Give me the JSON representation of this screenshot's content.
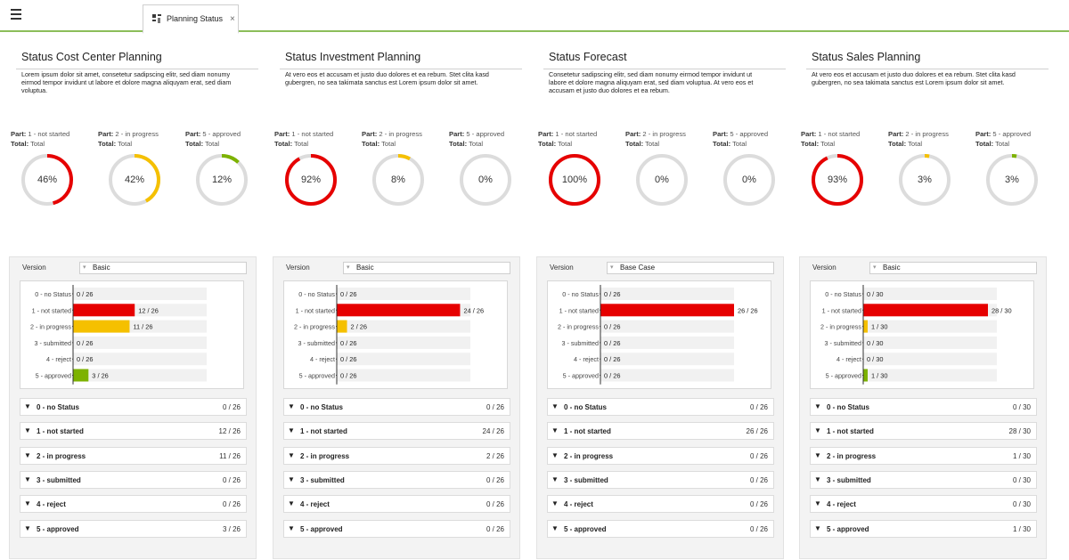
{
  "tab": {
    "label": "Planning Status",
    "close": "×"
  },
  "columns": [
    {
      "title": "Status Cost Center Planning",
      "description": "Lorem ipsum dolor sit amet, consetetur sadipscing elitr, sed diam nonumy eirmod tempor invidunt ut labore et dolore magna aliquyam erat, sed diam voluptua.",
      "parts": [
        {
          "part_key": "Part:",
          "part_val": " 1 - not started",
          "total_key": "Total:",
          "total_val": " Total",
          "percent": 46,
          "display": "46%",
          "color": "#e60000"
        },
        {
          "part_key": "Part:",
          "part_val": " 2 - in progress",
          "total_key": "Total:",
          "total_val": " Total",
          "percent": 42,
          "display": "42%",
          "color": "#f5c000"
        },
        {
          "part_key": "Part:",
          "part_val": " 5 - approved",
          "total_key": "Total:",
          "total_val": " Total",
          "percent": 12,
          "display": "12%",
          "color": "#7db200"
        }
      ],
      "version_label": "Version",
      "version_value": "Basic",
      "total": 26,
      "bars": [
        {
          "label": "0 - no Status",
          "value": 0,
          "text": "0 / 26"
        },
        {
          "label": "1 - not started",
          "value": 12,
          "text": "12 / 26"
        },
        {
          "label": "2 - in progress",
          "value": 11,
          "text": "11 / 26"
        },
        {
          "label": "3 - submitted",
          "value": 0,
          "text": "0 / 26"
        },
        {
          "label": "4 - reject",
          "value": 0,
          "text": "0 / 26"
        },
        {
          "label": "5 - approved",
          "value": 3,
          "text": "3 / 26"
        }
      ],
      "groups": [
        {
          "label": "0 - no Status",
          "count": "0 / 26"
        },
        {
          "label": "1 - not started",
          "count": "12 / 26"
        },
        {
          "label": "2 - in progress",
          "count": "11 / 26"
        },
        {
          "label": "3 - submitted",
          "count": "0 / 26"
        },
        {
          "label": "4 - reject",
          "count": "0 / 26"
        },
        {
          "label": "5 - approved",
          "count": "3 / 26"
        }
      ]
    },
    {
      "title": "Status Investment Planning",
      "description": "At vero eos et accusam et justo duo dolores et ea rebum. Stet clita kasd gubergren, no sea takimata sanctus est Lorem ipsum dolor sit amet.",
      "parts": [
        {
          "part_key": "Part:",
          "part_val": " 1 - not started",
          "total_key": "Total:",
          "total_val": " Total",
          "percent": 92,
          "display": "92%",
          "color": "#e60000"
        },
        {
          "part_key": "Part:",
          "part_val": " 2 - in progress",
          "total_key": "Total:",
          "total_val": " Total",
          "percent": 8,
          "display": "8%",
          "color": "#f5c000"
        },
        {
          "part_key": "Part:",
          "part_val": " 5 - approved",
          "total_key": "Total:",
          "total_val": " Total",
          "percent": 0,
          "display": "0%",
          "color": "#7db200"
        }
      ],
      "version_label": "Version",
      "version_value": "Basic",
      "total": 26,
      "bars": [
        {
          "label": "0 - no Status",
          "value": 0,
          "text": "0 / 26"
        },
        {
          "label": "1 - not started",
          "value": 24,
          "text": "24 / 26"
        },
        {
          "label": "2 - in progress",
          "value": 2,
          "text": "2 / 26"
        },
        {
          "label": "3 - submitted",
          "value": 0,
          "text": "0 / 26"
        },
        {
          "label": "4 - reject",
          "value": 0,
          "text": "0 / 26"
        },
        {
          "label": "5 - approved",
          "value": 0,
          "text": "0 / 26"
        }
      ],
      "groups": [
        {
          "label": "0 - no Status",
          "count": "0 / 26"
        },
        {
          "label": "1 - not started",
          "count": "24 / 26"
        },
        {
          "label": "2 - in progress",
          "count": "2 / 26"
        },
        {
          "label": "3 - submitted",
          "count": "0 / 26"
        },
        {
          "label": "4 - reject",
          "count": "0 / 26"
        },
        {
          "label": "5 - approved",
          "count": "0 / 26"
        }
      ]
    },
    {
      "title": "Status Forecast",
      "description": "Consetetur sadipscing elitr, sed diam nonumy eirmod tempor invidunt ut labore et dolore magna aliquyam erat, sed diam voluptua. At vero eos et accusam et justo duo dolores et ea rebum.",
      "parts": [
        {
          "part_key": "Part:",
          "part_val": " 1 - not started",
          "total_key": "Total:",
          "total_val": " Total",
          "percent": 100,
          "display": "100%",
          "color": "#e60000"
        },
        {
          "part_key": "Part:",
          "part_val": " 2 - in progress",
          "total_key": "Total:",
          "total_val": " Total",
          "percent": 0,
          "display": "0%",
          "color": "#f5c000"
        },
        {
          "part_key": "Part:",
          "part_val": " 5 - approved",
          "total_key": "Total:",
          "total_val": " Total",
          "percent": 0,
          "display": "0%",
          "color": "#7db200"
        }
      ],
      "version_label": "Version",
      "version_value": "Base Case",
      "total": 26,
      "bars": [
        {
          "label": "0 - no Status",
          "value": 0,
          "text": "0 / 26"
        },
        {
          "label": "1 - not started",
          "value": 26,
          "text": "26 / 26"
        },
        {
          "label": "2 - in progress",
          "value": 0,
          "text": "0 / 26"
        },
        {
          "label": "3 - submitted",
          "value": 0,
          "text": "0 / 26"
        },
        {
          "label": "4 - reject",
          "value": 0,
          "text": "0 / 26"
        },
        {
          "label": "5 - approved",
          "value": 0,
          "text": "0 / 26"
        }
      ],
      "groups": [
        {
          "label": "0 - no Status",
          "count": "0 / 26"
        },
        {
          "label": "1 - not started",
          "count": "26 / 26"
        },
        {
          "label": "2 - in progress",
          "count": "0 / 26"
        },
        {
          "label": "3 - submitted",
          "count": "0 / 26"
        },
        {
          "label": "4 - reject",
          "count": "0 / 26"
        },
        {
          "label": "5 - approved",
          "count": "0 / 26"
        }
      ]
    },
    {
      "title": "Status Sales Planning",
      "description": "At vero eos et accusam et justo duo dolores et ea rebum. Stet clita kasd gubergren, no sea takimata sanctus est Lorem ipsum dolor sit amet.",
      "parts": [
        {
          "part_key": "Part:",
          "part_val": " 1 - not started",
          "total_key": "Total:",
          "total_val": " Total",
          "percent": 93,
          "display": "93%",
          "color": "#e60000"
        },
        {
          "part_key": "Part:",
          "part_val": " 2 - in progress",
          "total_key": "Total:",
          "total_val": " Total",
          "percent": 3,
          "display": "3%",
          "color": "#f5c000"
        },
        {
          "part_key": "Part:",
          "part_val": " 5 - approved",
          "total_key": "Total:",
          "total_val": " Total",
          "percent": 3,
          "display": "3%",
          "color": "#7db200"
        }
      ],
      "version_label": "Version",
      "version_value": "Basic",
      "total": 30,
      "bars": [
        {
          "label": "0 - no Status",
          "value": 0,
          "text": "0 / 30"
        },
        {
          "label": "1 - not started",
          "value": 28,
          "text": "28 / 30"
        },
        {
          "label": "2 - in progress",
          "value": 1,
          "text": "1 / 30"
        },
        {
          "label": "3 - submitted",
          "value": 0,
          "text": "0 / 30"
        },
        {
          "label": "4 - reject",
          "value": 0,
          "text": "0 / 30"
        },
        {
          "label": "5 - approved",
          "value": 1,
          "text": "1 / 30"
        }
      ],
      "groups": [
        {
          "label": "0 - no Status",
          "count": "0 / 30"
        },
        {
          "label": "1 - not started",
          "count": "28 / 30"
        },
        {
          "label": "2 - in progress",
          "count": "1 / 30"
        },
        {
          "label": "3 - submitted",
          "count": "0 / 30"
        },
        {
          "label": "4 - reject",
          "count": "0 / 30"
        },
        {
          "label": "5 - approved",
          "count": "1 / 30"
        }
      ]
    }
  ],
  "status_colors": {
    "0 - no Status": "#e0e0e0",
    "1 - not started": "#e60000",
    "2 - in progress": "#f5c000",
    "3 - submitted": "#e0e0e0",
    "4 - reject": "#e0e0e0",
    "5 - approved": "#7db200"
  },
  "ring_track_color": "#dcdcdc",
  "group_arrow": "▼",
  "chart_data": [
    {
      "type": "bar",
      "categories": [
        "0 - no Status",
        "1 - not started",
        "2 - in progress",
        "3 - submitted",
        "4 - reject",
        "5 - approved"
      ],
      "values": [
        0,
        12,
        11,
        0,
        0,
        3
      ],
      "xlim": [
        0,
        26
      ],
      "title": "",
      "xlabel": "",
      "ylabel": ""
    },
    {
      "type": "bar",
      "categories": [
        "0 - no Status",
        "1 - not started",
        "2 - in progress",
        "3 - submitted",
        "4 - reject",
        "5 - approved"
      ],
      "values": [
        0,
        24,
        2,
        0,
        0,
        0
      ],
      "xlim": [
        0,
        26
      ],
      "title": "",
      "xlabel": "",
      "ylabel": ""
    },
    {
      "type": "bar",
      "categories": [
        "0 - no Status",
        "1 - not started",
        "2 - in progress",
        "3 - submitted",
        "4 - reject",
        "5 - approved"
      ],
      "values": [
        0,
        26,
        0,
        0,
        0,
        0
      ],
      "xlim": [
        0,
        26
      ],
      "title": "",
      "xlabel": "",
      "ylabel": ""
    },
    {
      "type": "bar",
      "categories": [
        "0 - no Status",
        "1 - not started",
        "2 - in progress",
        "3 - submitted",
        "4 - reject",
        "5 - approved"
      ],
      "values": [
        0,
        28,
        1,
        0,
        0,
        1
      ],
      "xlim": [
        0,
        30
      ],
      "title": "",
      "xlabel": "",
      "ylabel": ""
    }
  ]
}
